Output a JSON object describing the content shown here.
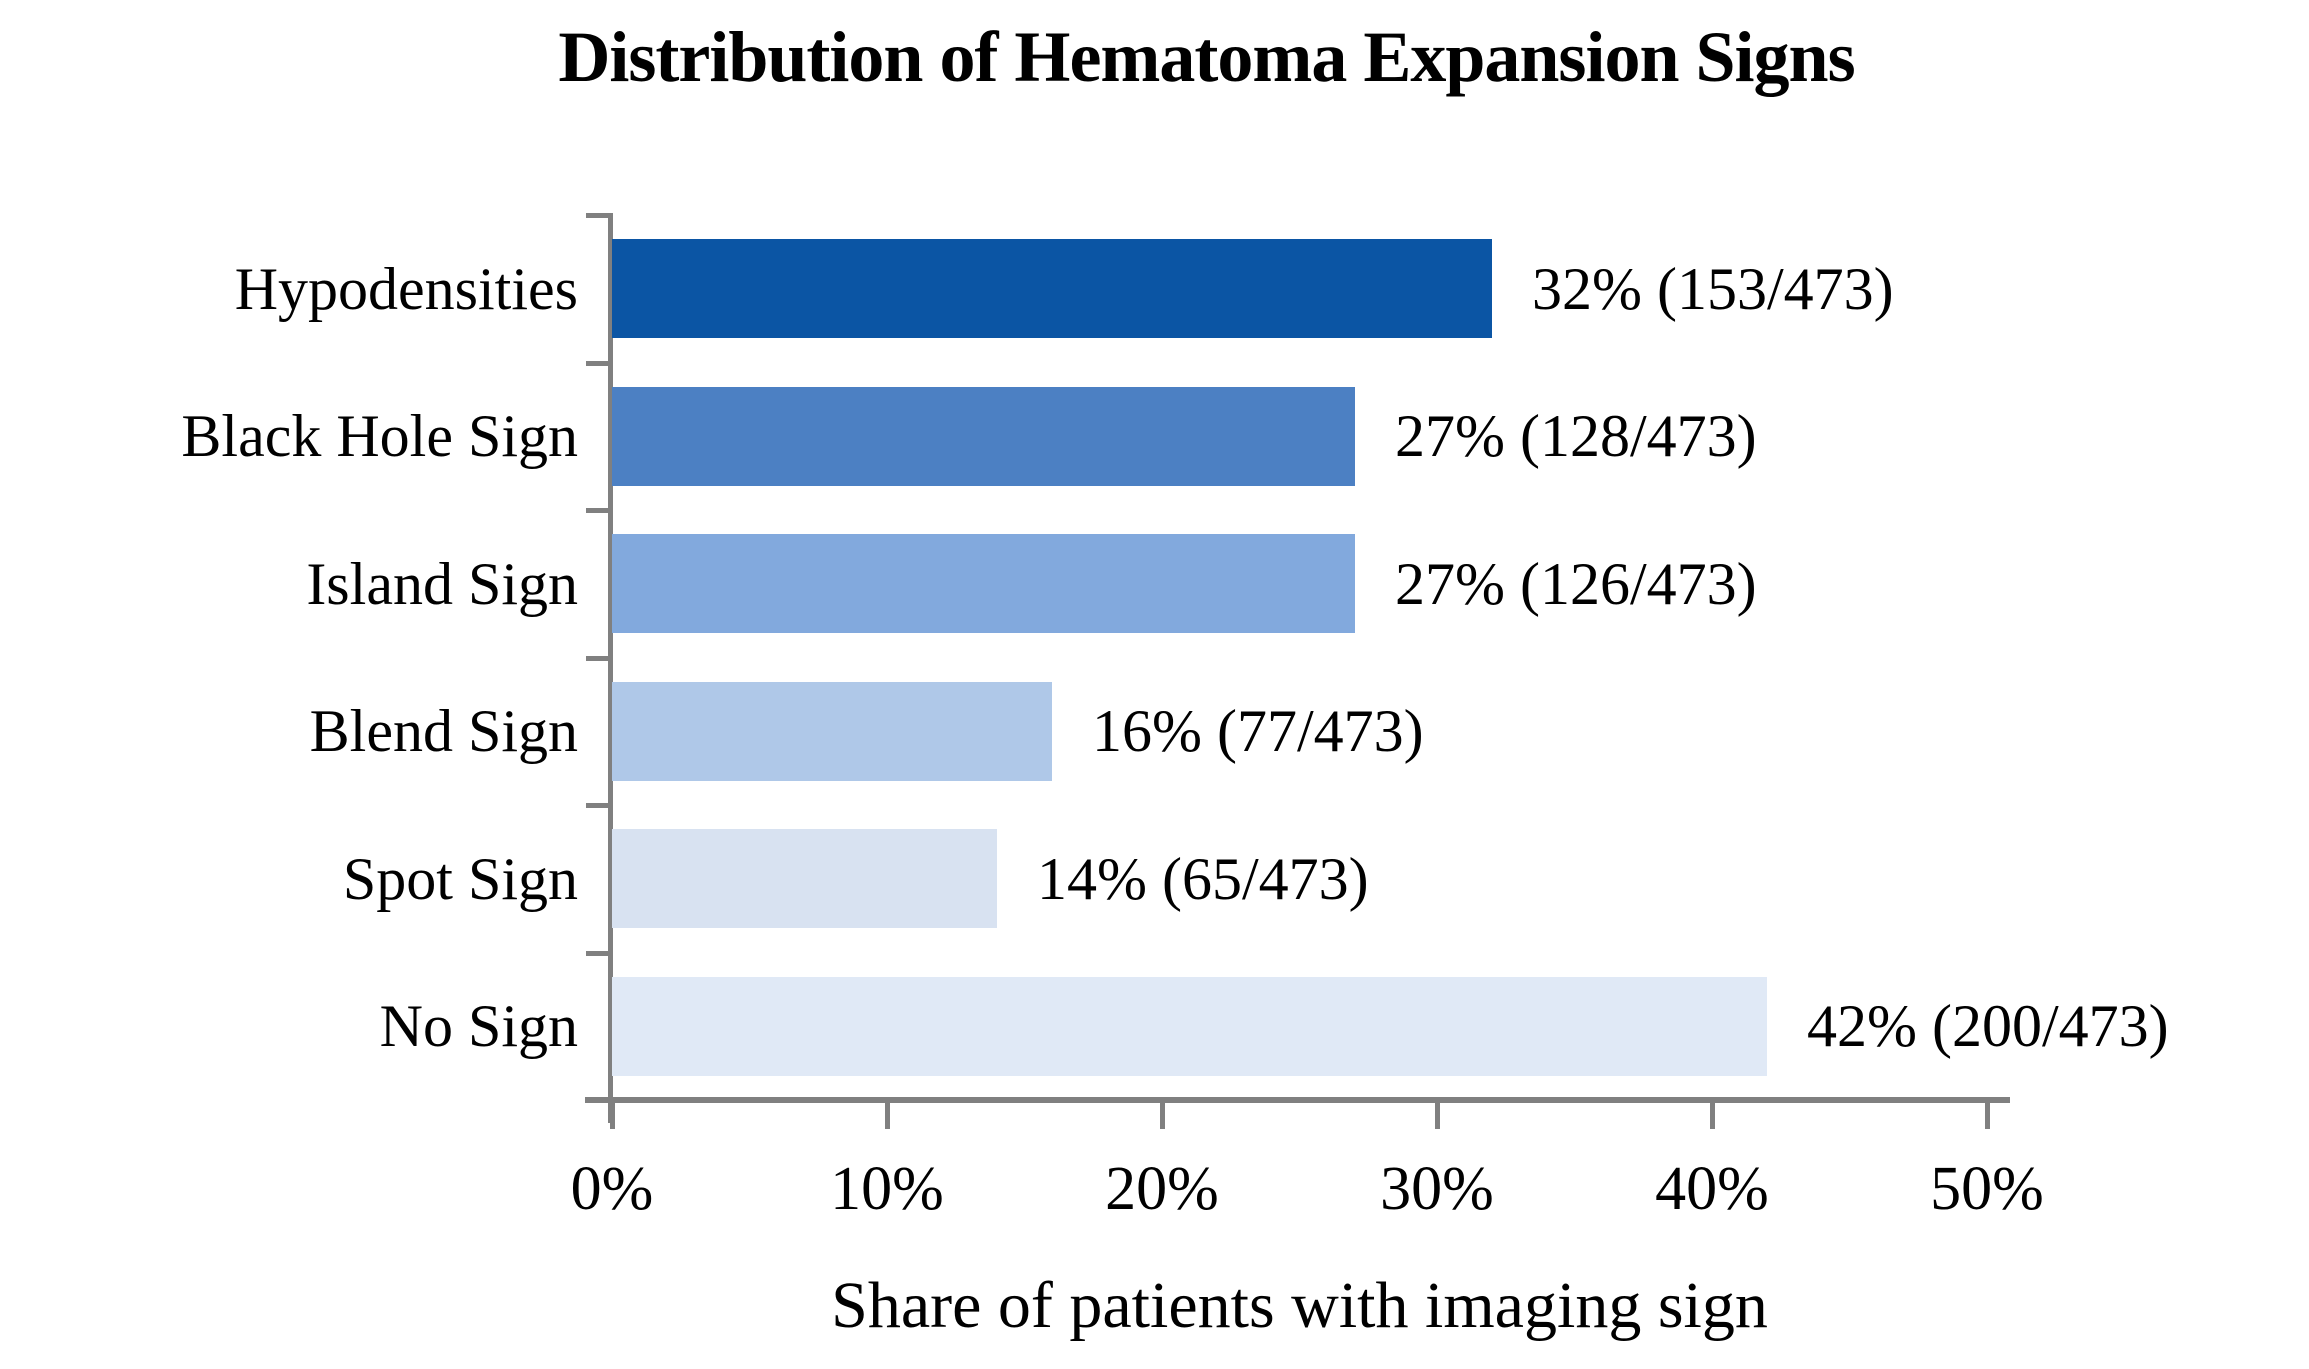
{
  "chart_data": {
    "type": "bar",
    "orientation": "horizontal",
    "title": "Distribution of Hematoma Expansion Signs",
    "xlabel": "Share of patients with imaging sign",
    "categories": [
      "Hypodensities",
      "Black Hole Sign",
      "Island Sign",
      "Blend Sign",
      "Spot Sign",
      "No Sign"
    ],
    "values": [
      32,
      27,
      27,
      16,
      14,
      42
    ],
    "numerators": [
      153,
      128,
      126,
      77,
      65,
      200
    ],
    "denominator": 473,
    "bar_labels": [
      "32% (153/473)",
      "27% (128/473)",
      "27% (126/473)",
      "16% (77/473)",
      "14% (65/473)",
      "42% (200/473)"
    ],
    "bar_colors": [
      "#0b55a4",
      "#4c80c3",
      "#82a9dd",
      "#afc8e8",
      "#d8e2f1",
      "#e0e9f6"
    ],
    "xlim": [
      0,
      50
    ],
    "x_ticks": [
      "0%",
      "10%",
      "20%",
      "30%",
      "40%",
      "50%"
    ],
    "x_tick_values": [
      0,
      10,
      20,
      30,
      40,
      50
    ],
    "axis_color": "#808080",
    "text_color": "#000000",
    "background_color": "#ffffff",
    "grid": false,
    "legend": "none"
  }
}
